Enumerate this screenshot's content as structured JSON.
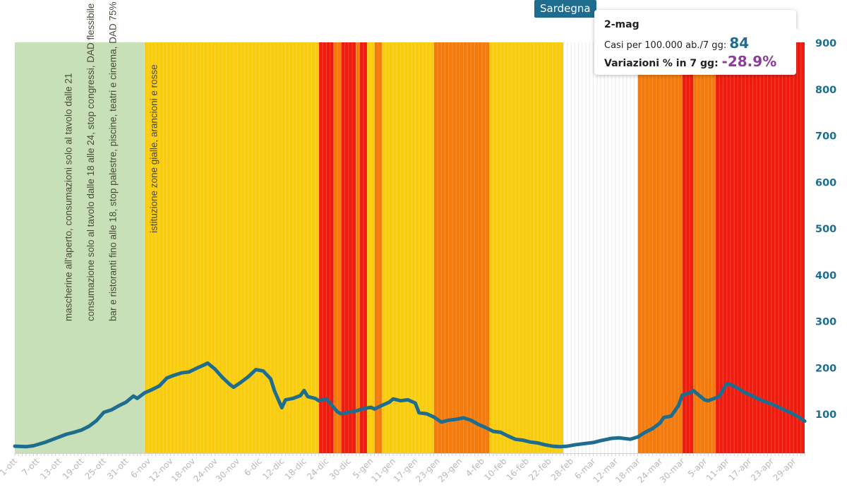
{
  "region": "Sardegna",
  "tooltip": {
    "date": "2-mag",
    "cases_label": "Casi per 100.000 ab./7 gg:",
    "cases_value": "84",
    "var_label": "Variazioni % in 7 gg:",
    "var_value": "-28.9%"
  },
  "colors": {
    "green_zone": "#c8e0b8",
    "yellow_zone": "#f9cc0e",
    "orange_zone": "#f47a0c",
    "red_zone": "#ef1c0e",
    "line": "#1e6d8f",
    "axis_text": "#1e6d8f",
    "tick_text": "#b8b8b8"
  },
  "chart_data": {
    "type": "line",
    "title": "",
    "xlabel": "",
    "ylabel": "",
    "ylim": [
      15,
      900
    ],
    "y_ticks": [
      100,
      200,
      300,
      400,
      500,
      600,
      700,
      800,
      900
    ],
    "y_axis_side": "right",
    "x_start": "1-ott",
    "x_end": "2-mag",
    "x_ticks": [
      {
        "day": 0,
        "label": "1-ott"
      },
      {
        "day": 6,
        "label": "7-ott"
      },
      {
        "day": 12,
        "label": "13-ott"
      },
      {
        "day": 18,
        "label": "19-ott"
      },
      {
        "day": 24,
        "label": "25-ott"
      },
      {
        "day": 30,
        "label": "31-ott"
      },
      {
        "day": 36,
        "label": "6-nov"
      },
      {
        "day": 42,
        "label": "12-nov"
      },
      {
        "day": 48,
        "label": "18-nov"
      },
      {
        "day": 54,
        "label": "24-nov"
      },
      {
        "day": 60,
        "label": "30-nov"
      },
      {
        "day": 66,
        "label": "6-dic"
      },
      {
        "day": 72,
        "label": "12-dic"
      },
      {
        "day": 78,
        "label": "18-dic"
      },
      {
        "day": 84,
        "label": "24-dic"
      },
      {
        "day": 90,
        "label": "30-dic"
      },
      {
        "day": 96,
        "label": "5-gen"
      },
      {
        "day": 102,
        "label": "11-gen"
      },
      {
        "day": 108,
        "label": "17-gen"
      },
      {
        "day": 114,
        "label": "23-gen"
      },
      {
        "day": 120,
        "label": "29-gen"
      },
      {
        "day": 126,
        "label": "4-feb"
      },
      {
        "day": 132,
        "label": "10-feb"
      },
      {
        "day": 138,
        "label": "16-feb"
      },
      {
        "day": 144,
        "label": "22-feb"
      },
      {
        "day": 150,
        "label": "28-feb"
      },
      {
        "day": 156,
        "label": "6-mar"
      },
      {
        "day": 162,
        "label": "12-mar"
      },
      {
        "day": 168,
        "label": "18-mar"
      },
      {
        "day": 174,
        "label": "24-mar"
      },
      {
        "day": 180,
        "label": "30-mar"
      },
      {
        "day": 186,
        "label": "5-apr"
      },
      {
        "day": 192,
        "label": "11-apr"
      },
      {
        "day": 198,
        "label": "17-apr"
      },
      {
        "day": 204,
        "label": "23-apr"
      },
      {
        "day": 210,
        "label": "29-apr"
      }
    ],
    "zones": [
      {
        "from": 0,
        "to": 35,
        "zone": "green"
      },
      {
        "from": 35,
        "to": 82,
        "zone": "yellow"
      },
      {
        "from": 82,
        "to": 86,
        "zone": "red"
      },
      {
        "from": 86,
        "to": 88,
        "zone": "orange"
      },
      {
        "from": 88,
        "to": 92,
        "zone": "red"
      },
      {
        "from": 92,
        "to": 93,
        "zone": "orange"
      },
      {
        "from": 93,
        "to": 95,
        "zone": "red"
      },
      {
        "from": 95,
        "to": 97,
        "zone": "yellow"
      },
      {
        "from": 97,
        "to": 99,
        "zone": "orange"
      },
      {
        "from": 99,
        "to": 113,
        "zone": "yellow"
      },
      {
        "from": 113,
        "to": 128,
        "zone": "orange"
      },
      {
        "from": 128,
        "to": 148,
        "zone": "yellow"
      },
      {
        "from": 148,
        "to": 168,
        "zone": "white"
      },
      {
        "from": 168,
        "to": 180,
        "zone": "orange"
      },
      {
        "from": 180,
        "to": 183,
        "zone": "red"
      },
      {
        "from": 183,
        "to": 189,
        "zone": "orange"
      },
      {
        "from": 189,
        "to": 214,
        "zone": "red"
      }
    ],
    "annotations": [
      {
        "day": 14,
        "text": "mascherine all'aperto, consumazioni solo al tavolo dalle 21"
      },
      {
        "day": 20,
        "text": "consumazione solo al tavolo dalle 18 alle 24, stop congressi, DAD flessibile"
      },
      {
        "day": 26,
        "text": "bar e ristoranti fino alle 18, stop palestre, piscine, teatri e cinema, DAD 75%"
      },
      {
        "day": 37,
        "text": "istituzione zone gialle, arancioni e rosse"
      }
    ],
    "series": [
      {
        "name": "",
        "points": [
          [
            0,
            30
          ],
          [
            3,
            29
          ],
          [
            5,
            31
          ],
          [
            8,
            38
          ],
          [
            10,
            44
          ],
          [
            12,
            50
          ],
          [
            14,
            56
          ],
          [
            16,
            60
          ],
          [
            18,
            65
          ],
          [
            20,
            73
          ],
          [
            22,
            85
          ],
          [
            24,
            103
          ],
          [
            26,
            108
          ],
          [
            28,
            117
          ],
          [
            30,
            125
          ],
          [
            32,
            138
          ],
          [
            33,
            133
          ],
          [
            35,
            145
          ],
          [
            37,
            152
          ],
          [
            39,
            160
          ],
          [
            41,
            177
          ],
          [
            43,
            183
          ],
          [
            45,
            188
          ],
          [
            47,
            190
          ],
          [
            49,
            198
          ],
          [
            51,
            205
          ],
          [
            52,
            209
          ],
          [
            54,
            196
          ],
          [
            56,
            178
          ],
          [
            58,
            163
          ],
          [
            59,
            157
          ],
          [
            61,
            168
          ],
          [
            63,
            180
          ],
          [
            65,
            195
          ],
          [
            67,
            192
          ],
          [
            69,
            175
          ],
          [
            70,
            150
          ],
          [
            72,
            113
          ],
          [
            73,
            130
          ],
          [
            75,
            133
          ],
          [
            77,
            139
          ],
          [
            78,
            150
          ],
          [
            79,
            137
          ],
          [
            81,
            133
          ],
          [
            82,
            128
          ],
          [
            84,
            132
          ],
          [
            85,
            123
          ],
          [
            87,
            104
          ],
          [
            88,
            100
          ],
          [
            90,
            103
          ],
          [
            92,
            106
          ],
          [
            94,
            111
          ],
          [
            96,
            114
          ],
          [
            97,
            110
          ],
          [
            99,
            118
          ],
          [
            101,
            125
          ],
          [
            102,
            132
          ],
          [
            104,
            128
          ],
          [
            106,
            130
          ],
          [
            108,
            123
          ],
          [
            109,
            102
          ],
          [
            111,
            100
          ],
          [
            113,
            93
          ],
          [
            115,
            82
          ],
          [
            117,
            86
          ],
          [
            119,
            88
          ],
          [
            121,
            91
          ],
          [
            123,
            86
          ],
          [
            125,
            77
          ],
          [
            127,
            70
          ],
          [
            129,
            62
          ],
          [
            131,
            60
          ],
          [
            133,
            52
          ],
          [
            135,
            45
          ],
          [
            137,
            43
          ],
          [
            139,
            39
          ],
          [
            141,
            37
          ],
          [
            143,
            33
          ],
          [
            145,
            30
          ],
          [
            147,
            29
          ],
          [
            149,
            30
          ],
          [
            151,
            33
          ],
          [
            153,
            35
          ],
          [
            156,
            38
          ],
          [
            158,
            42
          ],
          [
            161,
            47
          ],
          [
            163,
            48
          ],
          [
            166,
            45
          ],
          [
            168,
            50
          ],
          [
            170,
            60
          ],
          [
            172,
            68
          ],
          [
            174,
            80
          ],
          [
            175,
            92
          ],
          [
            177,
            95
          ],
          [
            179,
            118
          ],
          [
            180,
            140
          ],
          [
            182,
            145
          ],
          [
            183,
            150
          ],
          [
            184,
            143
          ],
          [
            186,
            130
          ],
          [
            187,
            128
          ],
          [
            189,
            134
          ],
          [
            190,
            138
          ],
          [
            192,
            165
          ],
          [
            193,
            163
          ],
          [
            195,
            155
          ],
          [
            197,
            145
          ],
          [
            199,
            138
          ],
          [
            201,
            130
          ],
          [
            203,
            124
          ],
          [
            205,
            118
          ],
          [
            207,
            110
          ],
          [
            209,
            103
          ],
          [
            211,
            95
          ],
          [
            213,
            84
          ]
        ]
      }
    ]
  }
}
